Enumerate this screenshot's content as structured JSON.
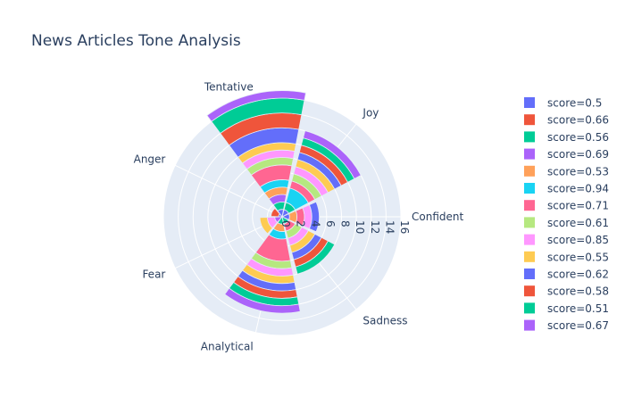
{
  "chart_data": {
    "type": "polar-bar",
    "title": "News Articles Tone Analysis",
    "categories": [
      "Confident",
      "Joy",
      "Tentative",
      "Anger",
      "Fear",
      "Analytical",
      "Sadness"
    ],
    "radial_range": [
      0,
      16
    ],
    "radial_ticks": [
      "0",
      "2",
      "4",
      "6",
      "8",
      "10",
      "12",
      "14",
      "16"
    ],
    "grid": true,
    "legend_position": "right",
    "series": [
      {
        "name": "score=0.5",
        "color": "#636efa",
        "values": [
          1,
          1,
          1,
          0.5,
          0,
          0,
          0
        ]
      },
      {
        "name": "score=0.66",
        "color": "#EF553B",
        "values": [
          0,
          0,
          0,
          1,
          0,
          0,
          0
        ]
      },
      {
        "name": "score=0.56",
        "color": "#00cc96",
        "values": [
          0,
          1,
          1,
          0,
          0,
          1,
          1
        ]
      },
      {
        "name": "score=0.69",
        "color": "#ab63fa",
        "values": [
          0,
          0,
          1,
          0,
          1,
          0,
          0
        ]
      },
      {
        "name": "score=0.53",
        "color": "#FFA15A",
        "values": [
          1,
          0,
          1,
          0,
          0,
          1,
          0
        ]
      },
      {
        "name": "score=0.94",
        "color": "#19d3f3",
        "values": [
          0,
          2,
          1,
          0,
          0,
          1,
          0
        ]
      },
      {
        "name": "score=0.71",
        "color": "#FF6692",
        "values": [
          1,
          1,
          2,
          0,
          0,
          3,
          1
        ]
      },
      {
        "name": "score=0.61",
        "color": "#B6E880",
        "values": [
          0,
          1,
          1,
          0,
          0,
          1,
          1
        ]
      },
      {
        "name": "score=0.85",
        "color": "#FF97FF",
        "values": [
          1,
          1,
          1,
          0,
          1,
          1,
          1
        ]
      },
      {
        "name": "score=0.55",
        "color": "#FECB52",
        "values": [
          0,
          1,
          1,
          0,
          1,
          1,
          1
        ]
      },
      {
        "name": "score=0.62",
        "color": "#636efa",
        "values": [
          1,
          1,
          2,
          0,
          0,
          1,
          1
        ]
      },
      {
        "name": "score=0.58",
        "color": "#EF553B",
        "values": [
          0,
          1,
          2,
          0,
          0,
          1,
          1
        ]
      },
      {
        "name": "score=0.51",
        "color": "#00cc96",
        "values": [
          0,
          1,
          2,
          0,
          0,
          1,
          1
        ]
      },
      {
        "name": "score=0.67",
        "color": "#ab63fa",
        "values": [
          0,
          1,
          1,
          0,
          0,
          1,
          0
        ]
      }
    ]
  }
}
